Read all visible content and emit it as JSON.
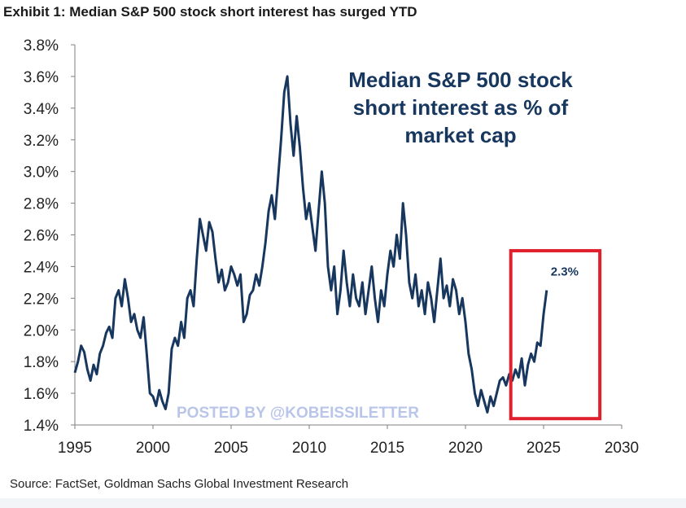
{
  "header": {
    "title": "Exhibit 1: Median S&P 500 stock short interest has surged YTD"
  },
  "footer": {
    "source": "Source: FactSet, Goldman Sachs Global Investment Research"
  },
  "watermark": "POSTED BY @KOBEISSILETTER",
  "colors": {
    "line": "#17375e",
    "highlight": "#e0212d",
    "axis": "#7f7f7f",
    "watermark": "#b9c6ea"
  },
  "chart_data": {
    "type": "line",
    "title_lines": [
      "Median S&P 500 stock",
      "short interest as % of",
      "market cap"
    ],
    "xlabel": "",
    "ylabel": "",
    "xlim": [
      1995,
      2030
    ],
    "ylim": [
      1.4,
      3.8
    ],
    "x_ticks": [
      "1995",
      "2000",
      "2005",
      "2010",
      "2015",
      "2020",
      "2025",
      "2030"
    ],
    "y_ticks": [
      "1.4%",
      "1.6%",
      "1.8%",
      "2.0%",
      "2.2%",
      "2.4%",
      "2.6%",
      "2.8%",
      "3.0%",
      "3.2%",
      "3.4%",
      "3.6%",
      "3.8%"
    ],
    "grid": false,
    "legend": "none",
    "highlight_box": {
      "x_range": [
        2022.9,
        2028.6
      ],
      "y_range": [
        1.44,
        2.5
      ]
    },
    "annotation": {
      "text": "2.3%",
      "x": 2025.3,
      "y": 2.26
    },
    "series": [
      {
        "x": [
          1995.0,
          1995.2,
          1995.4,
          1995.6,
          1995.8,
          1996.0,
          1996.2,
          1996.4,
          1996.6,
          1996.8,
          1997.0,
          1997.2,
          1997.4,
          1997.6,
          1997.8,
          1998.0,
          1998.2,
          1998.4,
          1998.6,
          1998.8,
          1999.0,
          1999.2,
          1999.4,
          1999.6,
          1999.8,
          2000.0,
          2000.2,
          2000.4,
          2000.6,
          2000.8,
          2001.0,
          2001.2,
          2001.4,
          2001.6,
          2001.8,
          2002.0,
          2002.2,
          2002.4,
          2002.6,
          2002.8,
          2003.0,
          2003.2,
          2003.4,
          2003.6,
          2003.8,
          2004.0,
          2004.2,
          2004.4,
          2004.6,
          2004.8,
          2005.0,
          2005.2,
          2005.4,
          2005.6,
          2005.8,
          2006.0,
          2006.2,
          2006.4,
          2006.6,
          2006.8,
          2007.0,
          2007.2,
          2007.4,
          2007.6,
          2007.8,
          2008.0,
          2008.2,
          2008.4,
          2008.6,
          2008.8,
          2009.0,
          2009.2,
          2009.4,
          2009.6,
          2009.8,
          2010.0,
          2010.2,
          2010.4,
          2010.6,
          2010.8,
          2011.0,
          2011.2,
          2011.4,
          2011.6,
          2011.8,
          2012.0,
          2012.2,
          2012.4,
          2012.6,
          2012.8,
          2013.0,
          2013.2,
          2013.4,
          2013.6,
          2013.8,
          2014.0,
          2014.2,
          2014.4,
          2014.6,
          2014.8,
          2015.0,
          2015.2,
          2015.4,
          2015.6,
          2015.8,
          2016.0,
          2016.2,
          2016.4,
          2016.6,
          2016.8,
          2017.0,
          2017.2,
          2017.4,
          2017.6,
          2017.8,
          2018.0,
          2018.2,
          2018.4,
          2018.6,
          2018.8,
          2019.0,
          2019.2,
          2019.4,
          2019.6,
          2019.8,
          2020.0,
          2020.2,
          2020.4,
          2020.6,
          2020.8,
          2021.0,
          2021.2,
          2021.4,
          2021.6,
          2021.8,
          2022.0,
          2022.2,
          2022.4,
          2022.6,
          2022.8,
          2023.0,
          2023.2,
          2023.4,
          2023.6,
          2023.8,
          2024.0,
          2024.2,
          2024.4,
          2024.6,
          2024.8,
          2025.0,
          2025.2
        ],
        "y": [
          1.73,
          1.8,
          1.9,
          1.86,
          1.75,
          1.68,
          1.78,
          1.72,
          1.85,
          1.9,
          1.98,
          2.02,
          1.95,
          2.2,
          2.25,
          2.15,
          2.32,
          2.2,
          2.05,
          2.1,
          2.0,
          1.95,
          2.08,
          1.85,
          1.6,
          1.58,
          1.52,
          1.62,
          1.55,
          1.5,
          1.6,
          1.88,
          1.95,
          1.9,
          2.05,
          1.95,
          2.2,
          2.25,
          2.15,
          2.45,
          2.7,
          2.6,
          2.5,
          2.68,
          2.62,
          2.45,
          2.3,
          2.38,
          2.25,
          2.3,
          2.4,
          2.35,
          2.28,
          2.35,
          2.05,
          2.1,
          2.22,
          2.25,
          2.35,
          2.28,
          2.4,
          2.55,
          2.75,
          2.85,
          2.7,
          2.95,
          3.2,
          3.5,
          3.6,
          3.3,
          3.1,
          3.35,
          3.15,
          2.9,
          2.7,
          2.8,
          2.65,
          2.5,
          2.75,
          3.0,
          2.8,
          2.4,
          2.25,
          2.4,
          2.1,
          2.25,
          2.5,
          2.3,
          2.15,
          2.35,
          2.2,
          2.15,
          2.3,
          2.1,
          2.25,
          2.4,
          2.2,
          2.05,
          2.25,
          2.15,
          2.35,
          2.5,
          2.4,
          2.6,
          2.45,
          2.8,
          2.6,
          2.3,
          2.2,
          2.35,
          2.15,
          2.25,
          2.1,
          2.3,
          2.2,
          2.05,
          2.25,
          2.45,
          2.2,
          2.28,
          2.15,
          2.32,
          2.25,
          2.1,
          2.2,
          2.05,
          1.85,
          1.75,
          1.6,
          1.52,
          1.62,
          1.55,
          1.48,
          1.58,
          1.52,
          1.6,
          1.68,
          1.7,
          1.65,
          1.72,
          1.68,
          1.75,
          1.7,
          1.82,
          1.65,
          1.78,
          1.85,
          1.8,
          1.92,
          1.9,
          2.1,
          2.25
        ]
      }
    ]
  }
}
